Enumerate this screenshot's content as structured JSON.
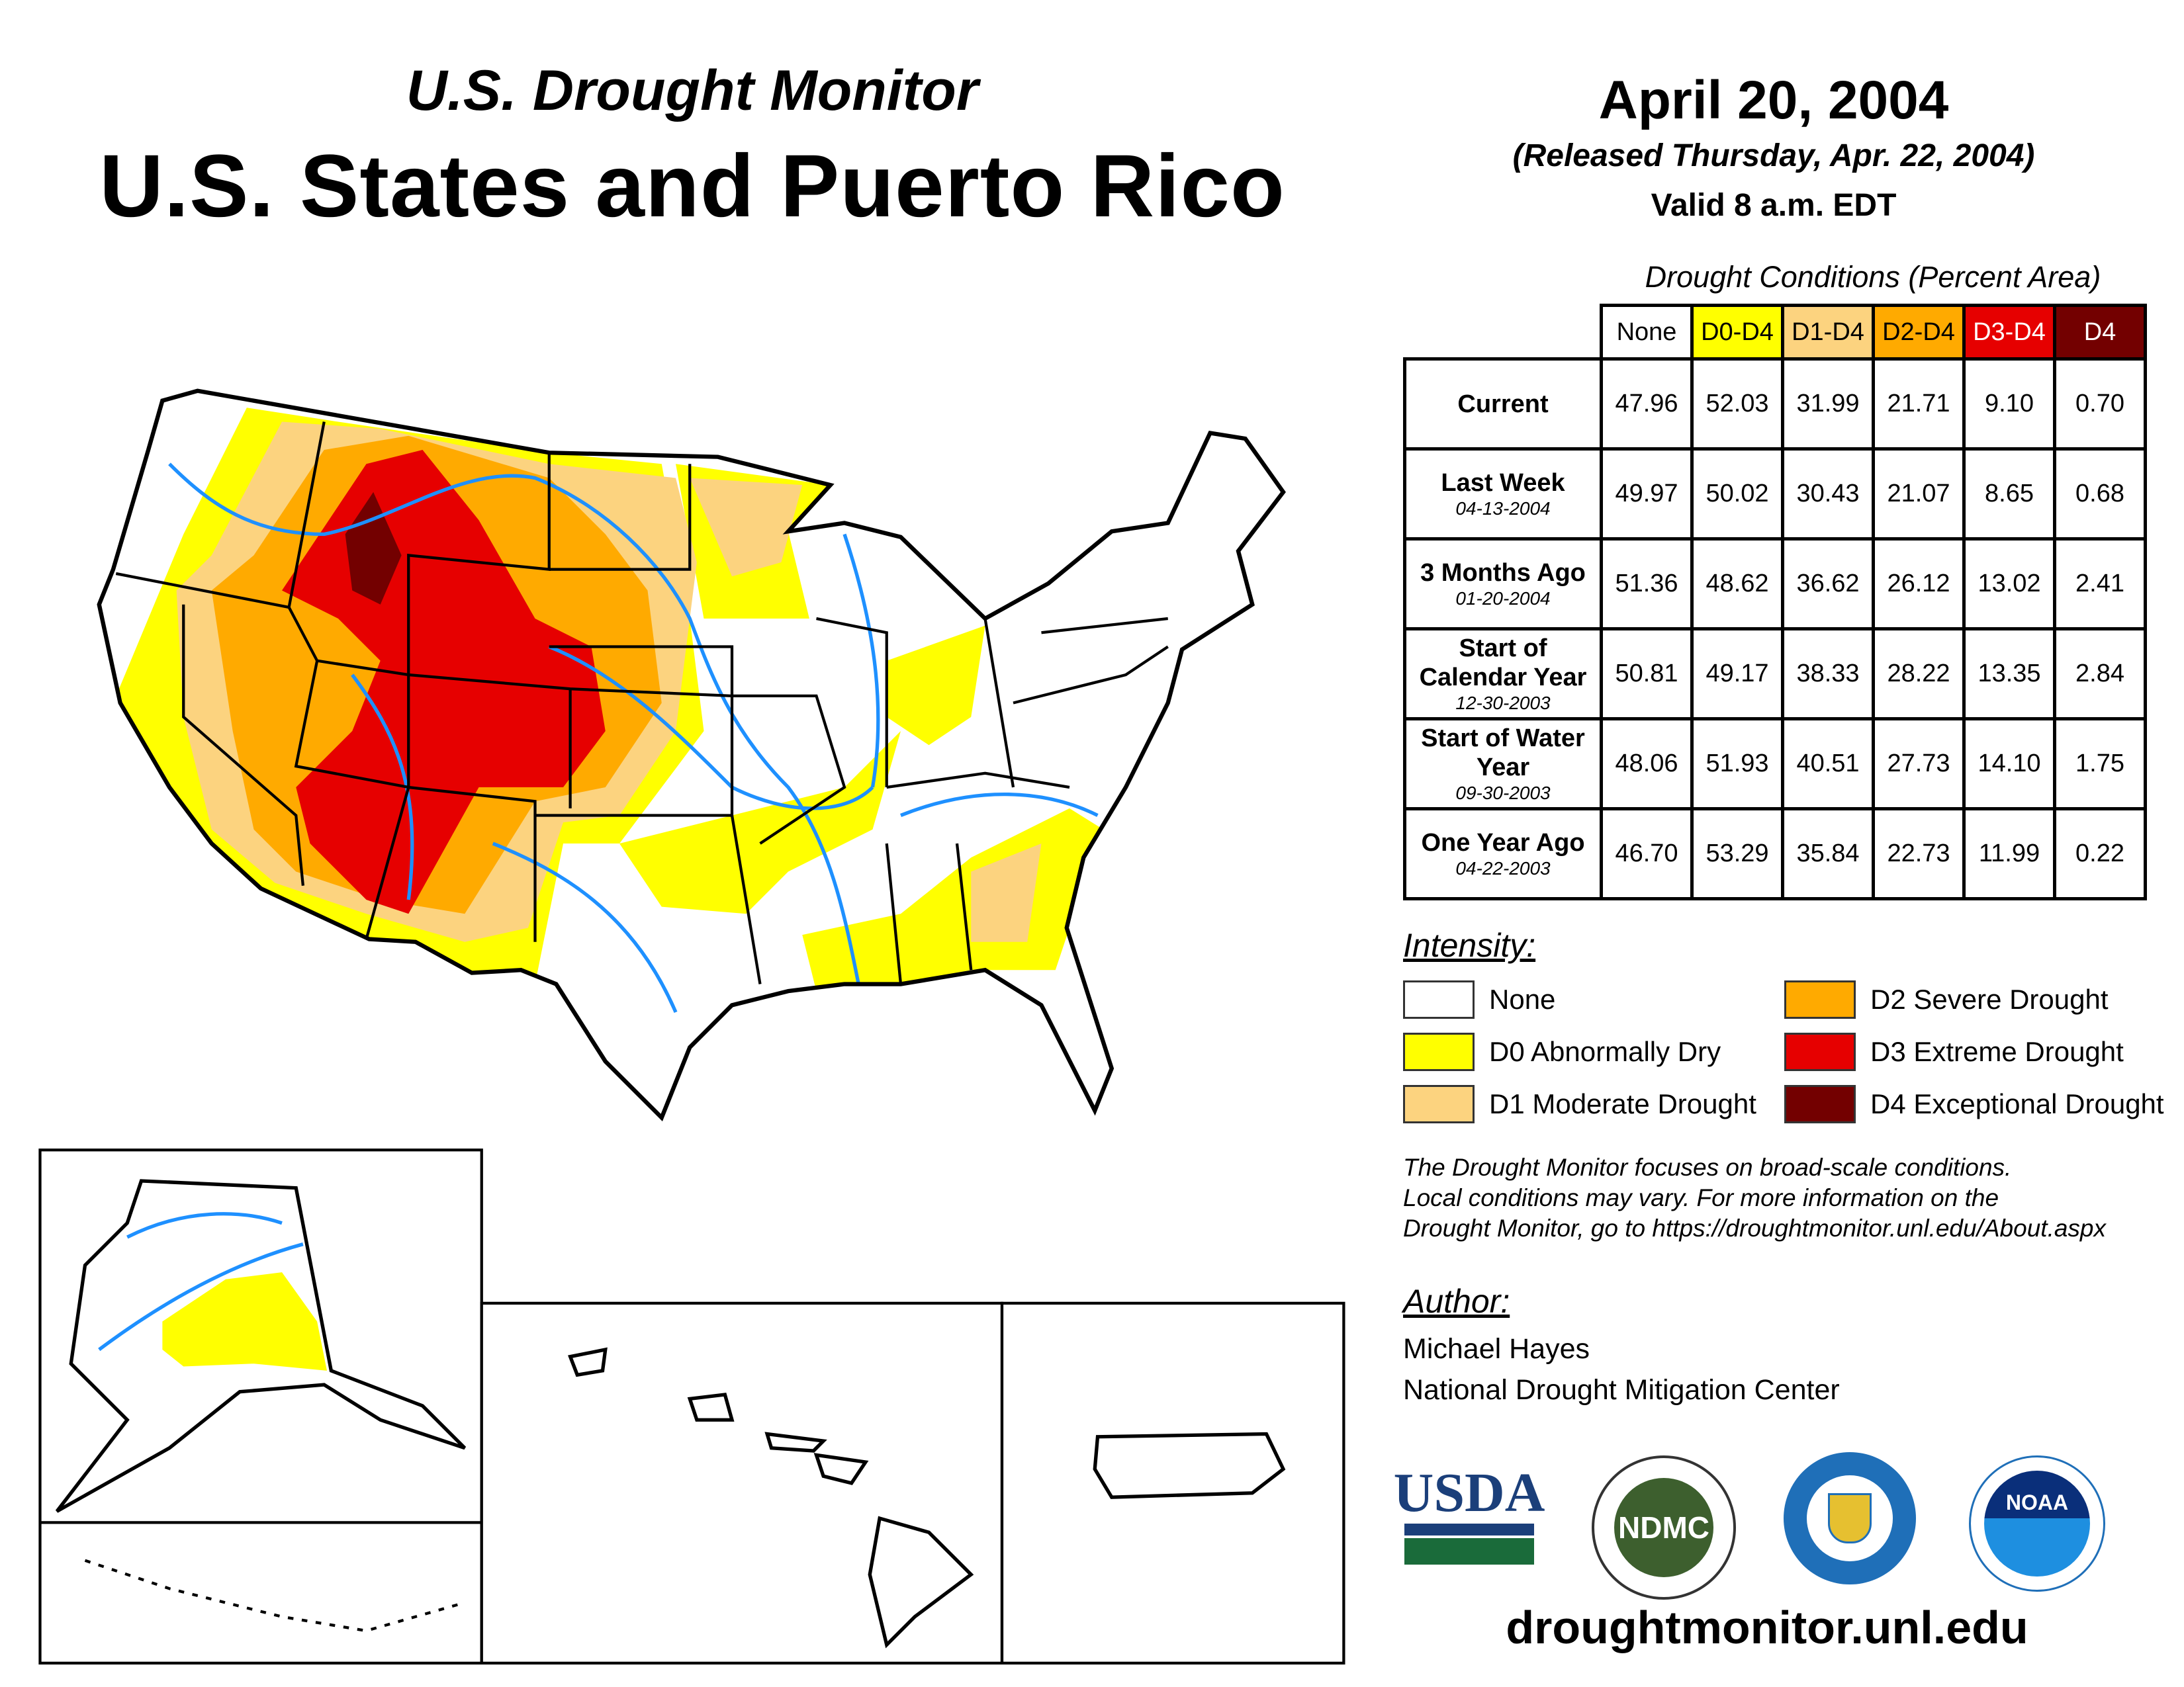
{
  "header": {
    "subtitle": "U.S. Drought Monitor",
    "title": "U.S. States and Puerto Rico",
    "date": "April 20, 2004",
    "released": "(Released Thursday, Apr. 22, 2004)",
    "valid": "Valid 8 a.m. EDT"
  },
  "table": {
    "caption": "Drought Conditions (Percent Area)",
    "columns": [
      {
        "label": "None",
        "bg": "#FFFFFF",
        "fg": "#000000"
      },
      {
        "label": "D0-D4",
        "bg": "#FFFF00",
        "fg": "#000000"
      },
      {
        "label": "D1-D4",
        "bg": "#FCD37F",
        "fg": "#000000"
      },
      {
        "label": "D2-D4",
        "bg": "#FFAA00",
        "fg": "#000000"
      },
      {
        "label": "D3-D4",
        "bg": "#E60000",
        "fg": "#FFFFFF"
      },
      {
        "label": "D4",
        "bg": "#730000",
        "fg": "#FFFFFF"
      }
    ],
    "rows": [
      {
        "label": "Current",
        "date": "",
        "values": [
          "47.96",
          "52.03",
          "31.99",
          "21.71",
          "9.10",
          "0.70"
        ]
      },
      {
        "label": "Last Week",
        "date": "04-13-2004",
        "values": [
          "49.97",
          "50.02",
          "30.43",
          "21.07",
          "8.65",
          "0.68"
        ]
      },
      {
        "label": "3 Months Ago",
        "date": "01-20-2004",
        "values": [
          "51.36",
          "48.62",
          "36.62",
          "26.12",
          "13.02",
          "2.41"
        ]
      },
      {
        "label": "Start of Calendar Year",
        "date": "12-30-2003",
        "values": [
          "50.81",
          "49.17",
          "38.33",
          "28.22",
          "13.35",
          "2.84"
        ]
      },
      {
        "label": "Start of Water Year",
        "date": "09-30-2003",
        "values": [
          "48.06",
          "51.93",
          "40.51",
          "27.73",
          "14.10",
          "1.75"
        ]
      },
      {
        "label": "One Year Ago",
        "date": "04-22-2003",
        "values": [
          "46.70",
          "53.29",
          "35.84",
          "22.73",
          "11.99",
          "0.22"
        ]
      }
    ]
  },
  "legend": {
    "title": "Intensity:",
    "items": [
      {
        "label": "None",
        "color": "#FFFFFF"
      },
      {
        "label": "D0 Abnormally Dry",
        "color": "#FFFF00"
      },
      {
        "label": "D1 Moderate Drought",
        "color": "#FCD37F"
      },
      {
        "label": "D2 Severe Drought",
        "color": "#FFAA00"
      },
      {
        "label": "D3 Extreme Drought",
        "color": "#E60000"
      },
      {
        "label": "D4 Exceptional Drought",
        "color": "#730000"
      }
    ]
  },
  "note": [
    "The Drought Monitor focuses on broad-scale conditions.",
    "Local conditions may vary. For more information on the",
    "Drought Monitor, go to https://droughtmonitor.unl.edu/About.aspx"
  ],
  "author": {
    "heading": "Author:",
    "name": "Michael Hayes",
    "org": "National Drought Mitigation Center"
  },
  "logos": {
    "usda": "USDA",
    "ndmc": "NDMC",
    "noaa": "NOAA"
  },
  "footer": {
    "url": "droughtmonitor.unl.edu"
  }
}
